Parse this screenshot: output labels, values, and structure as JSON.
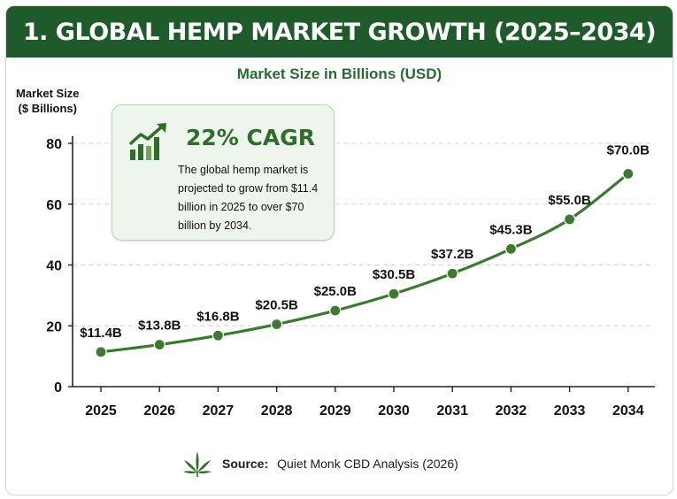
{
  "header": {
    "title": "1. GLOBAL HEMP MARKET GROWTH (2025–2034)"
  },
  "chart_data": {
    "type": "line",
    "title": "Market Size in Billions (USD)",
    "ylabel": "Market Size ($ Billions)",
    "xlabel": "",
    "x": [
      "2025",
      "2026",
      "2027",
      "2028",
      "2029",
      "2030",
      "2031",
      "2032",
      "2033",
      "2034"
    ],
    "series": [
      {
        "values": [
          11.4,
          13.8,
          16.8,
          20.5,
          25.0,
          30.5,
          37.2,
          45.3,
          55.0,
          70.0
        ]
      }
    ],
    "data_labels": [
      "$11.4B",
      "$13.8B",
      "$16.8B",
      "$20.5B",
      "$25.0B",
      "$30.5B",
      "$37.2B",
      "$45.3B",
      "$55.0B",
      "$70.0B"
    ],
    "yticks": [
      0,
      20,
      40,
      60,
      80
    ],
    "ylim": [
      0,
      80
    ],
    "grid": true,
    "line_color": "#3a7a2f",
    "point_color": "#3d7a30"
  },
  "callout": {
    "headline": "22% CAGR",
    "text": "The global hemp market is projected to grow from $11.4 billion in 2025 to over $70 billion by 2034.",
    "icon": "growth-chart-icon"
  },
  "footer": {
    "source_label": "Source:",
    "source_text": "Quiet Monk CBD Analysis (2026)",
    "icon": "cannabis-leaf-icon"
  }
}
